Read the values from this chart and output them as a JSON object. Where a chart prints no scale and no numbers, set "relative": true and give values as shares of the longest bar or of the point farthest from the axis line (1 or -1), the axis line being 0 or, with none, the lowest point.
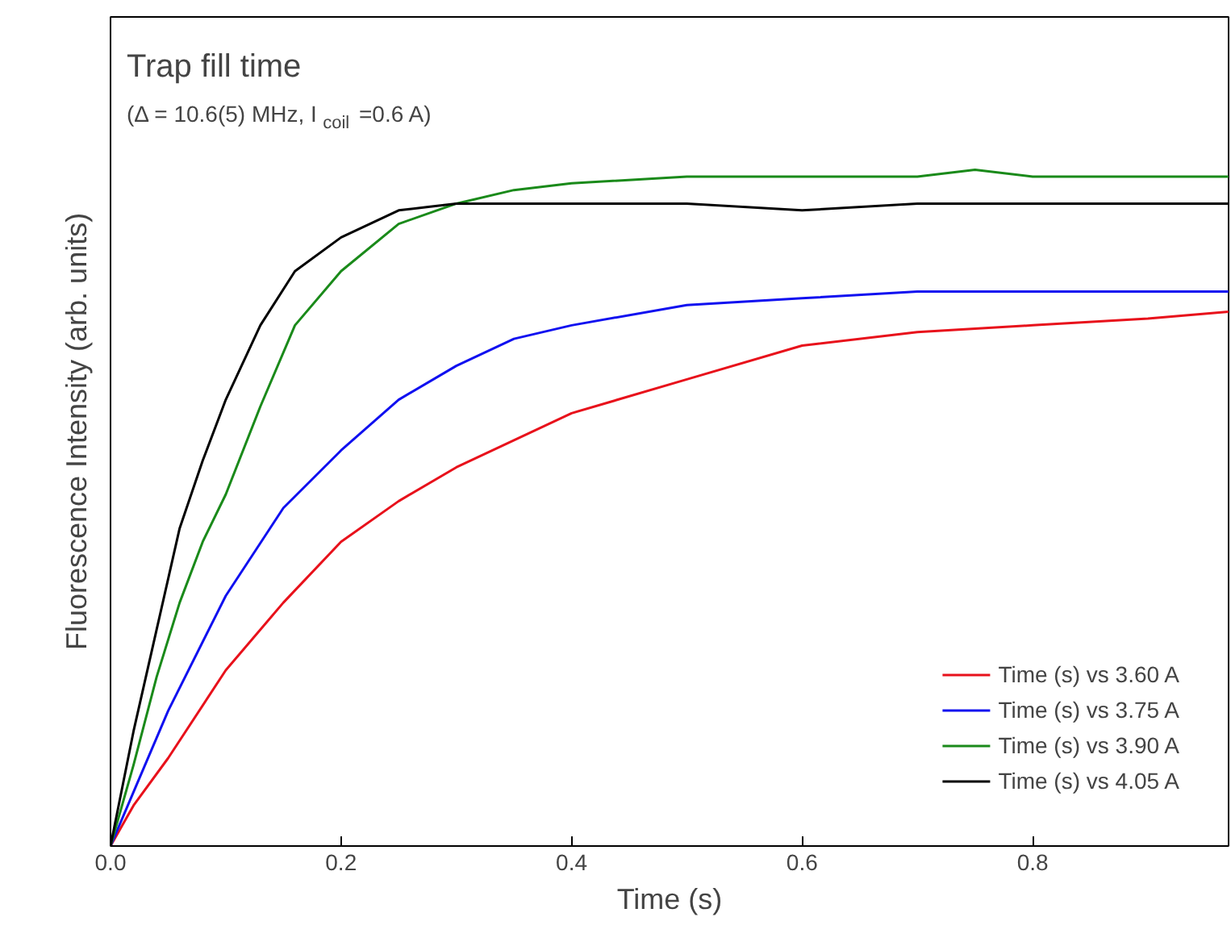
{
  "chart_data": {
    "type": "line",
    "title": "Trap fill time",
    "subtitle": "(Δ = 10.6(5) MHz, I$_{coil}$=0.6 A)",
    "xlabel": "Time (s)",
    "ylabel": "Fluorescence Intensity (arb. units)",
    "relative": true,
    "xlim": [
      0,
      0.97
    ],
    "xticks": [
      {
        "value": 0,
        "label": "0.0"
      },
      0.2,
      0.4,
      0.6,
      0.8
    ],
    "grid": false,
    "legend": "bottom right",
    "line_style": "solid",
    "marker": "none",
    "series": [
      {
        "name": "Time (s) vs 3.60 A",
        "color": "#e8111b",
        "x": [
          0,
          0.02,
          0.05,
          0.1,
          0.15,
          0.2,
          0.25,
          0.3,
          0.35,
          0.4,
          0.5,
          0.6,
          0.7,
          0.8,
          0.9,
          0.97
        ],
        "values": [
          0,
          0.06,
          0.13,
          0.26,
          0.36,
          0.45,
          0.51,
          0.56,
          0.6,
          0.64,
          0.69,
          0.74,
          0.76,
          0.77,
          0.78,
          0.79
        ]
      },
      {
        "name": "Time (s) vs 3.75 A",
        "color": "#1010f0",
        "x": [
          0,
          0.02,
          0.05,
          0.1,
          0.15,
          0.2,
          0.25,
          0.3,
          0.35,
          0.4,
          0.5,
          0.6,
          0.7,
          0.8,
          0.97
        ],
        "values": [
          0,
          0.08,
          0.2,
          0.37,
          0.5,
          0.585,
          0.66,
          0.71,
          0.75,
          0.77,
          0.8,
          0.81,
          0.82,
          0.82,
          0.82
        ]
      },
      {
        "name": "Time (s) vs 3.90 A",
        "color": "#1a8a1a",
        "x": [
          0,
          0.02,
          0.04,
          0.06,
          0.08,
          0.1,
          0.13,
          0.16,
          0.2,
          0.25,
          0.3,
          0.35,
          0.4,
          0.5,
          0.6,
          0.7,
          0.75,
          0.8,
          0.97
        ],
        "values": [
          0,
          0.12,
          0.25,
          0.36,
          0.45,
          0.52,
          0.65,
          0.77,
          0.85,
          0.92,
          0.95,
          0.97,
          0.98,
          0.99,
          0.99,
          0.99,
          1.0,
          0.99,
          0.99
        ]
      },
      {
        "name": "Time (s) vs 4.05 A",
        "color": "#000000",
        "x": [
          0,
          0.02,
          0.04,
          0.06,
          0.08,
          0.1,
          0.13,
          0.16,
          0.2,
          0.25,
          0.3,
          0.4,
          0.5,
          0.6,
          0.7,
          0.8,
          0.97
        ],
        "values": [
          0,
          0.17,
          0.32,
          0.47,
          0.57,
          0.66,
          0.77,
          0.85,
          0.9,
          0.94,
          0.95,
          0.95,
          0.95,
          0.94,
          0.95,
          0.95,
          0.95
        ]
      }
    ]
  }
}
